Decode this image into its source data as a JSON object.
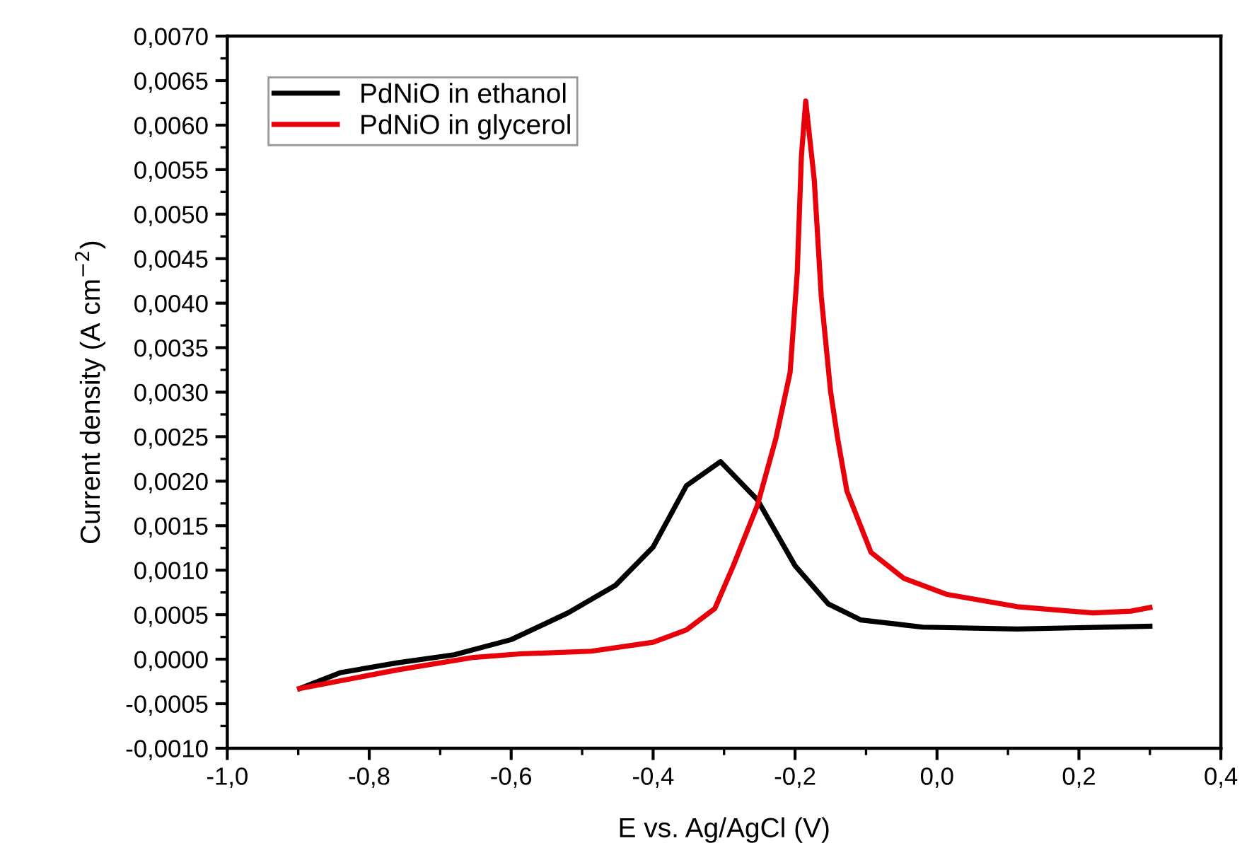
{
  "chart_data": {
    "type": "line",
    "xlabel": "E vs. Ag/AgCl (V)",
    "ylabel": "Current density (A cm$^{−2}$)",
    "xlim": [
      -1.0,
      0.4
    ],
    "ylim": [
      -0.001,
      0.007
    ],
    "xticks": [
      {
        "value": -1.0,
        "label": "-1,0"
      },
      {
        "value": -0.8,
        "label": "-0,8"
      },
      {
        "value": -0.6,
        "label": "-0,6"
      },
      {
        "value": -0.4,
        "label": "-0,4"
      },
      {
        "value": -0.2,
        "label": "-0,2"
      },
      {
        "value": 0.0,
        "label": "0,0"
      },
      {
        "value": 0.2,
        "label": "0,2"
      },
      {
        "value": 0.4,
        "label": "0,4"
      }
    ],
    "yticks": [
      {
        "value": -0.001,
        "label": "-0,0010"
      },
      {
        "value": -0.0005,
        "label": "-0,0005"
      },
      {
        "value": 0.0,
        "label": "0,0000"
      },
      {
        "value": 0.0005,
        "label": "0,0005"
      },
      {
        "value": 0.001,
        "label": "0,0010"
      },
      {
        "value": 0.0015,
        "label": "0,0015"
      },
      {
        "value": 0.002,
        "label": "0,0020"
      },
      {
        "value": 0.0025,
        "label": "0,0025"
      },
      {
        "value": 0.003,
        "label": "0,0030"
      },
      {
        "value": 0.0035,
        "label": "0,0035"
      },
      {
        "value": 0.004,
        "label": "0,0040"
      },
      {
        "value": 0.0045,
        "label": "0,0045"
      },
      {
        "value": 0.005,
        "label": "0,0050"
      },
      {
        "value": 0.0055,
        "label": "0,0055"
      },
      {
        "value": 0.006,
        "label": "0,0060"
      },
      {
        "value": 0.0065,
        "label": "0,0065"
      },
      {
        "value": 0.007,
        "label": "0,0070"
      }
    ],
    "grid": false,
    "legend": "top left",
    "marker": "none",
    "line_style": "solid",
    "series": [
      {
        "name": "PdNiO in ethanol",
        "color": "#000000",
        "x": [
          -0.898,
          -0.84,
          -0.76,
          -0.68,
          -0.6,
          -0.52,
          -0.453,
          -0.4,
          -0.353,
          -0.305,
          -0.253,
          -0.2,
          -0.153,
          -0.107,
          -0.02,
          0.113,
          0.3
        ],
        "values": [
          -0.00033,
          -0.00015,
          -4e-05,
          5e-05,
          0.00022,
          0.00052,
          0.00083,
          0.00126,
          0.00195,
          0.00222,
          0.00179,
          0.00105,
          0.00062,
          0.00044,
          0.00036,
          0.00034,
          0.00037
        ]
      },
      {
        "name": "PdNiO in glycerol",
        "color": "#e8000b",
        "x": [
          -0.898,
          -0.76,
          -0.653,
          -0.587,
          -0.487,
          -0.4,
          -0.353,
          -0.313,
          -0.287,
          -0.253,
          -0.227,
          -0.207,
          -0.197,
          -0.191,
          -0.185,
          -0.173,
          -0.163,
          -0.15,
          -0.14,
          -0.127,
          -0.093,
          -0.047,
          0.013,
          0.113,
          0.22,
          0.273,
          0.3
        ],
        "values": [
          -0.00033,
          -0.00012,
          2e-05,
          6e-05,
          9e-05,
          0.00019,
          0.00033,
          0.00057,
          0.00105,
          0.00173,
          0.00248,
          0.00322,
          0.00433,
          0.00566,
          0.00627,
          0.00539,
          0.00407,
          0.00301,
          0.00248,
          0.00189,
          0.0012,
          0.00091,
          0.00073,
          0.00059,
          0.00052,
          0.00054,
          0.00058
        ]
      }
    ]
  }
}
